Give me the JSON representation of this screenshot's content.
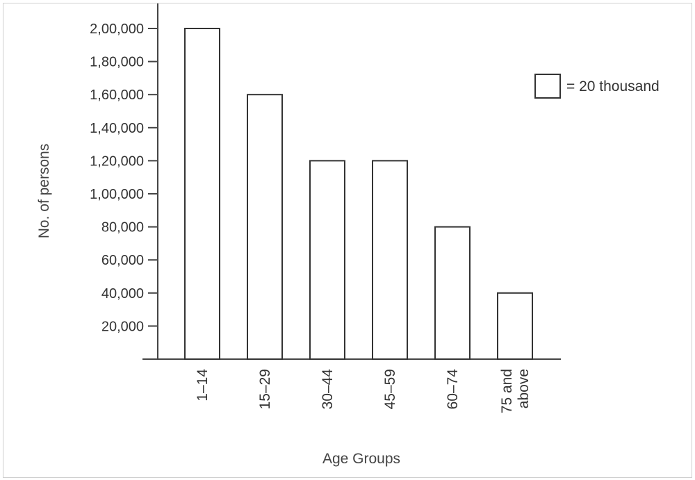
{
  "chart_data": {
    "type": "bar",
    "categories": [
      "1–14",
      "15–29",
      "30–44",
      "45–59",
      "60–74",
      "75 and above"
    ],
    "category_lines": [
      [
        "1–14"
      ],
      [
        "15–29"
      ],
      [
        "30–44"
      ],
      [
        "45–59"
      ],
      [
        "60–74"
      ],
      [
        "75 and",
        "above"
      ]
    ],
    "values": [
      200000,
      160000,
      120000,
      120000,
      80000,
      40000
    ],
    "y_ticks": [
      20000,
      40000,
      60000,
      80000,
      100000,
      120000,
      140000,
      160000,
      180000,
      200000
    ],
    "y_tick_labels": [
      "20,000",
      "40,000",
      "60,000",
      "80,000",
      "1,00,000",
      "1,20,000",
      "1,40,000",
      "1,60,000",
      "1,80,000",
      "2,00,000"
    ],
    "ylim": [
      0,
      200000
    ],
    "xlabel": "Age Groups",
    "ylabel": "No. of persons",
    "legend": {
      "text": "= 20 thousand",
      "position": "top-right"
    },
    "grid": false
  },
  "colors": {
    "bar_fill": "#ffffff",
    "stroke": "#333333"
  }
}
